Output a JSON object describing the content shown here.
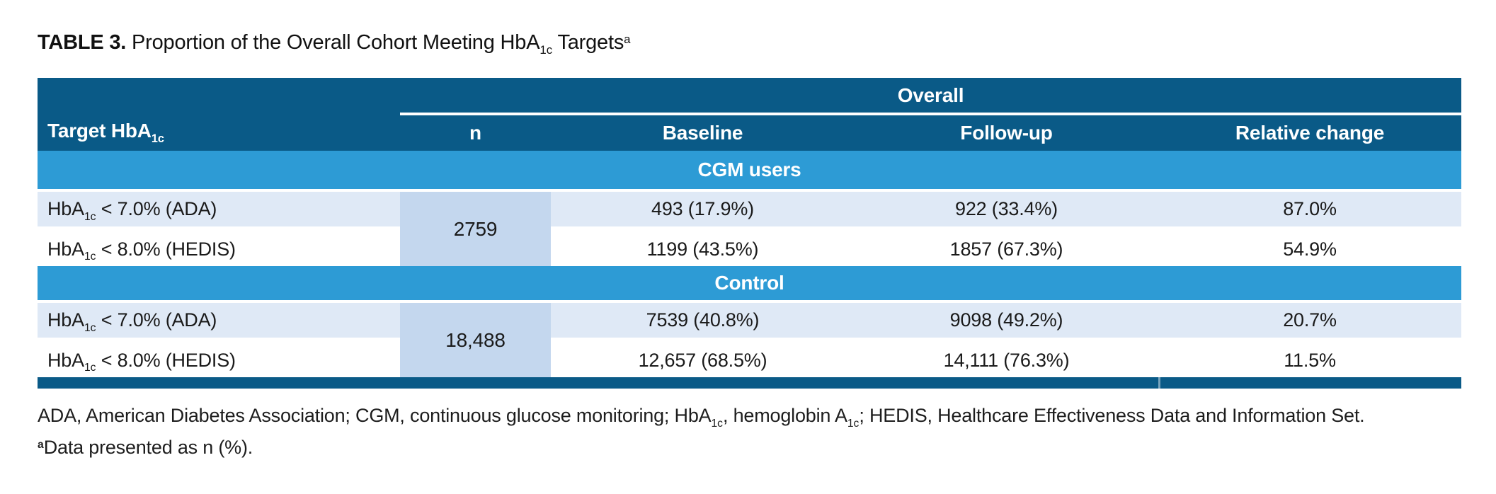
{
  "title": {
    "label": "TABLE 3.",
    "text_pre": " Proportion of the Overall Cohort Meeting HbA",
    "text_sub": "1c",
    "text_post": " Targets",
    "marker": "a"
  },
  "header": {
    "target_pre": "Target HbA",
    "target_sub": "1c",
    "group_label": "Overall",
    "columns": [
      "n",
      "Baseline",
      "Follow-up",
      "Relative change"
    ]
  },
  "sections": [
    {
      "title": "CGM users",
      "n": "2759",
      "rows": [
        {
          "label_pre": "HbA",
          "label_sub": "1c",
          "label_post": " < 7.0% (ADA)",
          "baseline": "493 (17.9%)",
          "followup": "922 (33.4%)",
          "relative_change": "87.0%"
        },
        {
          "label_pre": "HbA",
          "label_sub": "1c",
          "label_post": " < 8.0% (HEDIS)",
          "baseline": "1199 (43.5%)",
          "followup": "1857 (67.3%)",
          "relative_change": "54.9%"
        }
      ]
    },
    {
      "title": "Control",
      "n": "18,488",
      "rows": [
        {
          "label_pre": "HbA",
          "label_sub": "1c",
          "label_post": " < 7.0% (ADA)",
          "baseline": "7539 (40.8%)",
          "followup": "9098 (49.2%)",
          "relative_change": "20.7%"
        },
        {
          "label_pre": "HbA",
          "label_sub": "1c",
          "label_post": " < 8.0% (HEDIS)",
          "baseline": "12,657 (68.5%)",
          "followup": "14,111 (76.3%)",
          "relative_change": "11.5%"
        }
      ]
    }
  ],
  "footnotes": {
    "abbr_pre": "ADA, American Diabetes Association; CGM, continuous glucose monitoring; HbA",
    "abbr_sub1": "1c",
    "abbr_mid": ", hemoglobin A",
    "abbr_sub2": "1c",
    "abbr_post": "; HEDIS, Healthcare Effectiveness Data and Information Set.",
    "marker": "a",
    "note": "Data presented as n (%)."
  },
  "colors": {
    "header_dark": "#0a5a87",
    "section_band": "#2d9bd5",
    "row_light": "#dfe9f6",
    "n_cell": "#c4d7ee",
    "background": "#ffffff"
  }
}
